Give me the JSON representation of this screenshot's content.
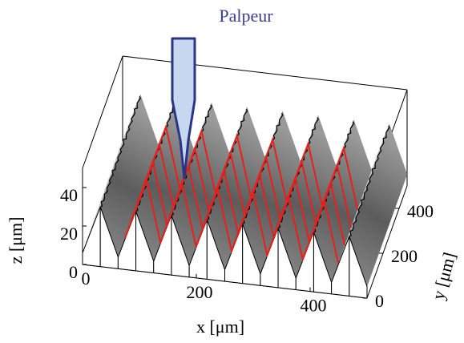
{
  "chart_data": {
    "type": "surface3d",
    "annotation": "Palpeur",
    "xlabel": "x [μm]",
    "ylabel": "y [μm]",
    "zlabel": "z [μm]",
    "xlim": [
      0,
      500
    ],
    "ylim": [
      0,
      500
    ],
    "zlim": [
      0,
      50
    ],
    "xticks": [
      0,
      200,
      400
    ],
    "yticks": [
      0,
      200,
      400
    ],
    "zticks": [
      0,
      20,
      40
    ]
  }
}
